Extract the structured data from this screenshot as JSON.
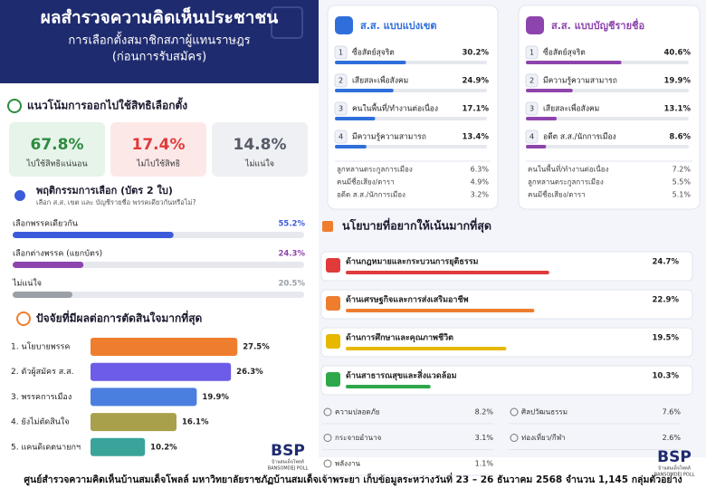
{
  "header": {
    "title": "ผลสำรวจความคิดเห็นประชาชน",
    "subtitle_lines": [
      "การเลือกตั้งสมาชิกสภาผู้แทนราษฎร",
      "(ก่อนการรับสมัคร)"
    ]
  },
  "chart_data": [
    {
      "type": "stat",
      "title": "แนวโน้มการออกไปใช้สิทธิเลือกตั้ง",
      "categories": [
        "ไปใช้สิทธิแน่นอน",
        "ไม่ไปใช้สิทธิ",
        "ไม่แน่ใจ"
      ],
      "values": [
        67.8,
        17.4,
        14.8
      ],
      "value_labels": [
        "67.8%",
        "17.4%",
        "14.8%"
      ],
      "colors": [
        "#2e8b3e",
        "#e03a3a",
        "#555b66"
      ]
    },
    {
      "type": "bar",
      "title": "พฤติกรรมการเลือก (บัตร 2 ใบ)",
      "subtitle": "เลือก ส.ส. เขต และ บัญชีรายชื่อ พรรคเดียวกันหรือไม่?",
      "categories": [
        "เลือกพรรคเดียวกัน",
        "เลือกต่างพรรค (แยกบัตร)",
        "ไม่แน่ใจ"
      ],
      "values": [
        55.2,
        24.3,
        20.5
      ],
      "value_labels": [
        "55.2%",
        "24.3%",
        "20.5%"
      ],
      "colors": [
        "#3b5bdb",
        "#8e44ad",
        "#9aa0a6"
      ]
    },
    {
      "type": "hbar",
      "title": "ปัจจัยที่มีผลต่อการตัดสินใจมากที่สุด",
      "categories": [
        "1. นโยบายพรรค",
        "2. ตัวผู้สมัคร ส.ส.",
        "3. พรรคการเมือง",
        "4. ยังไม่ตัดสินใจ",
        "5. แคนดิเดตนายกฯ"
      ],
      "values": [
        27.5,
        26.3,
        19.9,
        16.1,
        10.2
      ],
      "value_labels": [
        "27.5%",
        "26.3%",
        "19.9%",
        "16.1%",
        "10.2%"
      ],
      "colors": [
        "#ef7d2e",
        "#6c5ce7",
        "#4a7fe0",
        "#a8a04a",
        "#3aa39a"
      ]
    },
    {
      "type": "rank",
      "title": "ส.ส. แบบแบ่งเขต",
      "color": "#2f6fdb",
      "ranks": [
        1,
        2,
        3,
        4
      ],
      "categories": [
        "ซื่อสัตย์สุจริต",
        "เสียสละเพื่อสังคม",
        "คนในพื้นที่/ทำงานต่อเนื่อง",
        "มีความรู้ความสามารถ"
      ],
      "values": [
        30.2,
        24.9,
        17.1,
        13.4
      ],
      "value_labels": [
        "30.2%",
        "24.9%",
        "17.1%",
        "13.4%"
      ],
      "others": {
        "categories": [
          "ลูกหลานตระกูลการเมือง",
          "คนมีชื่อเสียง/ดารา",
          "อดีต ส.ส./นักการเมือง"
        ],
        "values": [
          6.3,
          4.9,
          3.2
        ],
        "value_labels": [
          "6.3%",
          "4.9%",
          "3.2%"
        ]
      }
    },
    {
      "type": "rank",
      "title": "ส.ส. แบบบัญชีรายชื่อ",
      "color": "#8e44ad",
      "ranks": [
        1,
        2,
        3,
        4
      ],
      "categories": [
        "ซื่อสัตย์สุจริต",
        "มีความรู้ความสามารถ",
        "เสียสละเพื่อสังคม",
        "อดีต ส.ส./นักการเมือง"
      ],
      "values": [
        40.6,
        19.9,
        13.1,
        8.6
      ],
      "value_labels": [
        "40.6%",
        "19.9%",
        "13.1%",
        "8.6%"
      ],
      "others": {
        "categories": [
          "คนในพื้นที่/ทำงานต่อเนื่อง",
          "ลูกหลานตระกูลการเมือง",
          "คนมีชื่อเสียง/ดารา"
        ],
        "values": [
          7.2,
          5.5,
          5.1
        ],
        "value_labels": [
          "7.2%",
          "5.5%",
          "5.1%"
        ]
      }
    },
    {
      "type": "policy",
      "title": "นโยบายที่อยากให้เน้นมากที่สุด",
      "categories": [
        "ด้านกฎหมายและกระบวนการยุติธรรม",
        "ด้านเศรษฐกิจและการส่งเสริมอาชีพ",
        "ด้านการศึกษาและคุณภาพชีวิต",
        "ด้านสาธารณสุขและสิ่งแวดล้อม"
      ],
      "values": [
        24.7,
        22.9,
        19.5,
        10.3
      ],
      "value_labels": [
        "24.7%",
        "22.9%",
        "19.5%",
        "10.3%"
      ],
      "colors": [
        "#e03a3a",
        "#ef7d2e",
        "#e6b800",
        "#2ea84a"
      ],
      "others": {
        "categories": [
          "ความปลอดภัย",
          "กระจายอำนาจ",
          "พลังงาน",
          "ศิลปวัฒนธรรม",
          "ท่องเที่ยว/กีฬา"
        ],
        "values": [
          8.2,
          3.1,
          1.1,
          7.6,
          2.6
        ],
        "value_labels": [
          "8.2%",
          "3.1%",
          "1.1%",
          "7.6%",
          "2.6%"
        ]
      }
    }
  ],
  "footer": {
    "text": "ศูนย์สำรวจความคิดเห็นบ้านสมเด็จโพลล์ มหาวิทยาลัยราชภัฏบ้านสมเด็จเจ้าพระยา  เก็บข้อมูลระหว่างวันที่ 23 – 26 ธันวาคม 2568 จำนวน 1,145 กลุ่มตัวอย่าง",
    "logo": {
      "mark": "BSP",
      "caption": "บ้านสมเด็จโพลล์",
      "name": "BANSOMDEJ POLL"
    }
  }
}
